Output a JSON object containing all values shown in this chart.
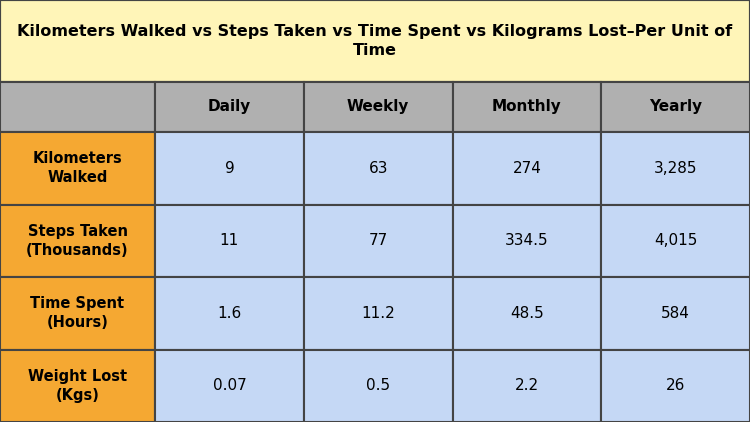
{
  "title_line1": "Kilometers Walked vs Steps Taken vs Time Spent vs Kilograms Lost–Per Unit of",
  "title_line2": "Time",
  "col_headers": [
    "Daily",
    "Weekly",
    "Monthly",
    "Yearly"
  ],
  "row_headers": [
    "Kilometers\nWalked",
    "Steps Taken\n(Thousands)",
    "Time Spent\n(Hours)",
    "Weight Lost\n(Kgs)"
  ],
  "table_data": [
    [
      "9",
      "63",
      "274",
      "3,285"
    ],
    [
      "11",
      "77",
      "334.5",
      "4,015"
    ],
    [
      "1.6",
      "11.2",
      "48.5",
      "584"
    ],
    [
      "0.07",
      "0.5",
      "2.2",
      "26"
    ]
  ],
  "title_bg": "#FFF5B8",
  "header_bg": "#B0B0B0",
  "row_header_bg": "#F5A832",
  "data_bg": "#C5D8F5",
  "border_color": "#444444",
  "title_fontsize": 11.5,
  "header_fontsize": 11,
  "data_fontsize": 11,
  "row_header_fontsize": 10.5,
  "fig_width": 7.5,
  "fig_height": 4.22,
  "dpi": 100
}
